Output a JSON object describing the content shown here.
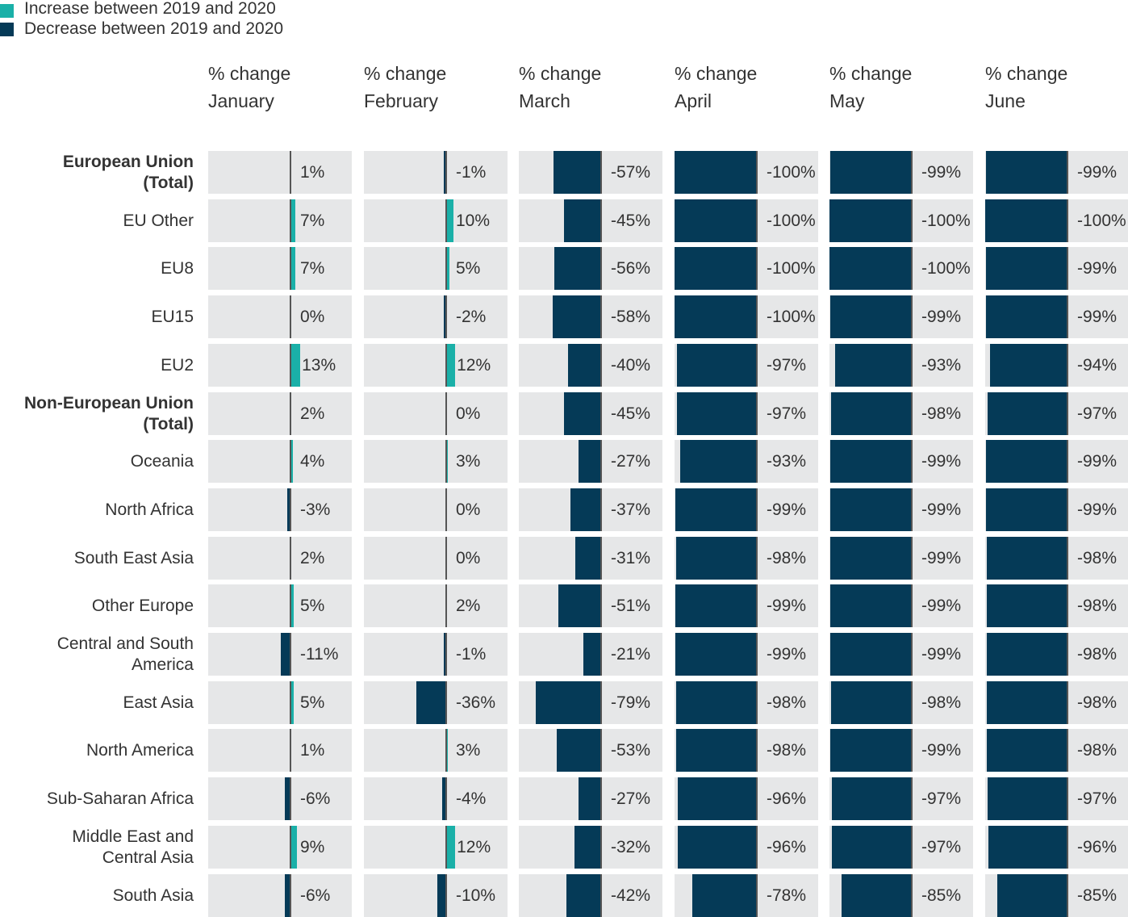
{
  "colors": {
    "increase": "#1ab0a8",
    "decrease": "#053a57",
    "cell_background": "#e6e7e8",
    "zero_line": "#555555"
  },
  "legend": [
    {
      "label": "Increase between 2019 and 2020",
      "color": "#1ab0a8"
    },
    {
      "label": "Decrease between 2019 and 2020",
      "color": "#053a57"
    }
  ],
  "chart_data": {
    "type": "bar",
    "orientation": "horizontal",
    "layout": "small multiples",
    "scale": [
      -100,
      100
    ],
    "columns": [
      {
        "line1": "% change",
        "line2": "January"
      },
      {
        "line1": "% change",
        "line2": "February"
      },
      {
        "line1": "% change",
        "line2": "March"
      },
      {
        "line1": "% change",
        "line2": "April"
      },
      {
        "line1": "% change",
        "line2": "May"
      },
      {
        "line1": "% change",
        "line2": "June"
      }
    ],
    "rows": [
      {
        "label_lines": [
          "European Union",
          "(Total)"
        ],
        "bold": true,
        "values": [
          1,
          -1,
          -57,
          -100,
          -99,
          -99
        ],
        "labels": [
          "1%",
          "-1%",
          "-57%",
          "-100%",
          "-99%",
          "-99%"
        ]
      },
      {
        "label_lines": [
          "EU Other"
        ],
        "bold": false,
        "values": [
          7,
          10,
          -45,
          -100,
          -100,
          -100
        ],
        "labels": [
          "7%",
          "10%",
          "-45%",
          "-100%",
          "-100%",
          "-100%"
        ]
      },
      {
        "label_lines": [
          "EU8"
        ],
        "bold": false,
        "values": [
          7,
          5,
          -56,
          -100,
          -100,
          -99
        ],
        "labels": [
          "7%",
          "5%",
          "-56%",
          "-100%",
          "-100%",
          "-99%"
        ]
      },
      {
        "label_lines": [
          "EU15"
        ],
        "bold": false,
        "values": [
          0,
          -2,
          -58,
          -100,
          -99,
          -99
        ],
        "labels": [
          "0%",
          "-2%",
          "-58%",
          "-100%",
          "-99%",
          "-99%"
        ]
      },
      {
        "label_lines": [
          "EU2"
        ],
        "bold": false,
        "values": [
          13,
          12,
          -40,
          -97,
          -93,
          -94
        ],
        "labels": [
          "13%",
          "12%",
          "-40%",
          "-97%",
          "-93%",
          "-94%"
        ]
      },
      {
        "label_lines": [
          "Non-European Union",
          "(Total)"
        ],
        "bold": true,
        "values": [
          2,
          0,
          -45,
          -97,
          -98,
          -97
        ],
        "labels": [
          "2%",
          "0%",
          "-45%",
          "-97%",
          "-98%",
          "-97%"
        ]
      },
      {
        "label_lines": [
          "Oceania"
        ],
        "bold": false,
        "values": [
          4,
          3,
          -27,
          -93,
          -99,
          -99
        ],
        "labels": [
          "4%",
          "3%",
          "-27%",
          "-93%",
          "-99%",
          "-99%"
        ]
      },
      {
        "label_lines": [
          "North Africa"
        ],
        "bold": false,
        "values": [
          -3,
          0,
          -37,
          -99,
          -99,
          -99
        ],
        "labels": [
          "-3%",
          "0%",
          "-37%",
          "-99%",
          "-99%",
          "-99%"
        ]
      },
      {
        "label_lines": [
          "South East Asia"
        ],
        "bold": false,
        "values": [
          2,
          0,
          -31,
          -98,
          -99,
          -98
        ],
        "labels": [
          "2%",
          "0%",
          "-31%",
          "-98%",
          "-99%",
          "-98%"
        ]
      },
      {
        "label_lines": [
          "Other Europe"
        ],
        "bold": false,
        "values": [
          5,
          2,
          -51,
          -99,
          -99,
          -98
        ],
        "labels": [
          "5%",
          "2%",
          "-51%",
          "-99%",
          "-99%",
          "-98%"
        ]
      },
      {
        "label_lines": [
          "Central and South",
          "America"
        ],
        "bold": false,
        "values": [
          -11,
          -1,
          -21,
          -99,
          -99,
          -98
        ],
        "labels": [
          "-11%",
          "-1%",
          "-21%",
          "-99%",
          "-99%",
          "-98%"
        ]
      },
      {
        "label_lines": [
          "East Asia"
        ],
        "bold": false,
        "values": [
          5,
          -36,
          -79,
          -98,
          -98,
          -98
        ],
        "labels": [
          "5%",
          "-36%",
          "-79%",
          "-98%",
          "-98%",
          "-98%"
        ]
      },
      {
        "label_lines": [
          "North America"
        ],
        "bold": false,
        "values": [
          1,
          3,
          -53,
          -98,
          -99,
          -98
        ],
        "labels": [
          "1%",
          "3%",
          "-53%",
          "-98%",
          "-99%",
          "-98%"
        ]
      },
      {
        "label_lines": [
          "Sub-Saharan Africa"
        ],
        "bold": false,
        "values": [
          -6,
          -4,
          -27,
          -96,
          -97,
          -97
        ],
        "labels": [
          "-6%",
          "-4%",
          "-27%",
          "-96%",
          "-97%",
          "-97%"
        ]
      },
      {
        "label_lines": [
          "Middle East and",
          "Central Asia"
        ],
        "bold": false,
        "values": [
          9,
          12,
          -32,
          -96,
          -97,
          -96
        ],
        "labels": [
          "9%",
          "12%",
          "-32%",
          "-96%",
          "-97%",
          "-96%"
        ]
      },
      {
        "label_lines": [
          "South Asia"
        ],
        "bold": false,
        "values": [
          -6,
          -10,
          -42,
          -78,
          -85,
          -85
        ],
        "labels": [
          "-6%",
          "-10%",
          "-42%",
          "-78%",
          "-85%",
          "-85%"
        ]
      }
    ]
  }
}
